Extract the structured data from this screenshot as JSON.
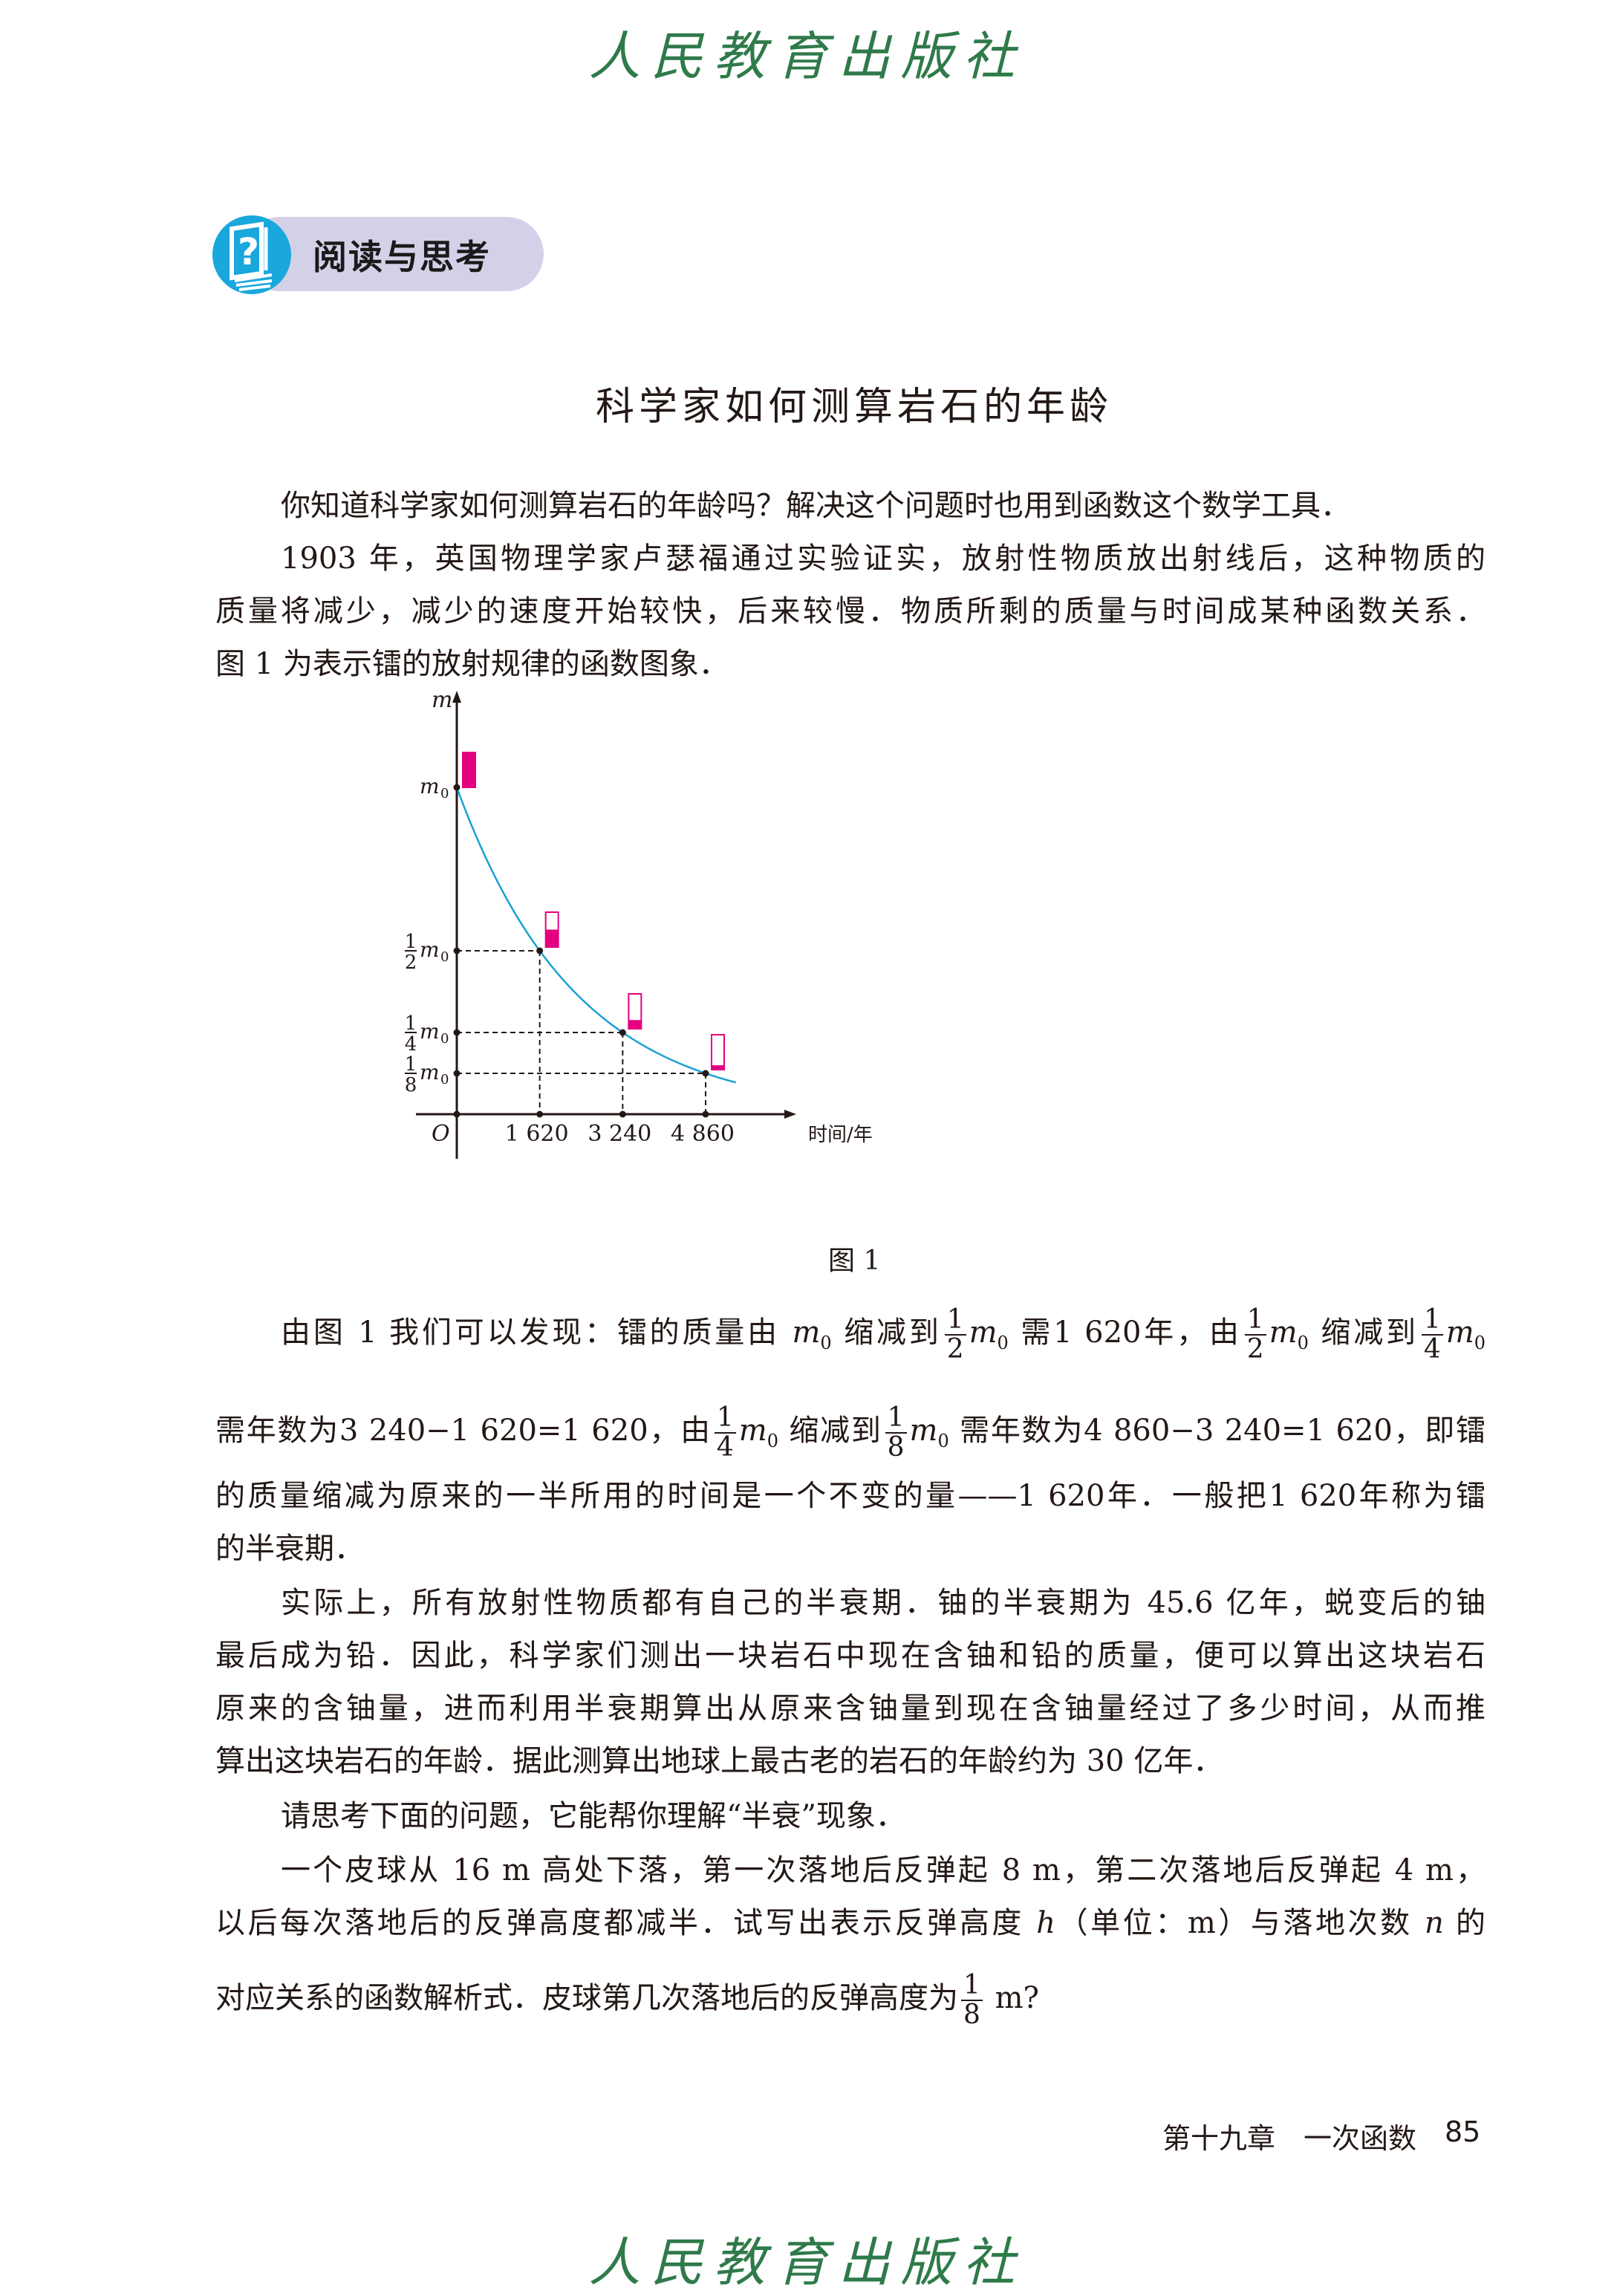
{
  "publisher_logo": "人民教育出版社",
  "section_badge": {
    "label": "阅读与思考",
    "icon": "question-book-icon",
    "pill_color": "#d3d1e8",
    "icon_color": "#1aa7dc"
  },
  "article_title": "科学家如何测算岩石的年龄",
  "body": {
    "paragraphs": [
      {
        "indent": true,
        "lines": [
          [
            {
              "t": "你知道科学家如何测算岩石的年龄吗？解决这个问题时也用到函数这个数学工具．"
            }
          ]
        ]
      },
      {
        "indent": true,
        "lines": [
          [
            {
              "t": "1903 年，英国物理学家卢瑟福通过实验证实，放射性物质放出射线后，这种物质的"
            }
          ],
          [
            {
              "t": "质量将减少，减少的速度开始较快，后来较慢．物质所剩的质量与时间成某种函数关系．"
            }
          ],
          [
            {
              "t": "图 1 为表示镭的放射规律的函数图象．"
            }
          ]
        ]
      },
      {
        "indent": true,
        "lines": [
          [
            {
              "t": "由图 1 我们可以发现：镭的质量由 "
            },
            {
              "i": "m",
              "sub": "0"
            },
            {
              "t": " 缩减到"
            },
            {
              "frac": [
                "1",
                "2"
              ]
            },
            {
              "i": "m",
              "sub": "0"
            },
            {
              "t": " 需1 620年，由"
            },
            {
              "frac": [
                "1",
                "2"
              ]
            },
            {
              "i": "m",
              "sub": "0"
            },
            {
              "t": " 缩减到"
            },
            {
              "frac": [
                "1",
                "4"
              ]
            },
            {
              "i": "m",
              "sub": "0"
            }
          ],
          [
            {
              "t": "需年数为3 240−1 620=1 620，由"
            },
            {
              "frac": [
                "1",
                "4"
              ]
            },
            {
              "i": "m",
              "sub": "0"
            },
            {
              "t": " 缩减到"
            },
            {
              "frac": [
                "1",
                "8"
              ]
            },
            {
              "i": "m",
              "sub": "0"
            },
            {
              "t": " 需年数为4 860−3 240=1 620，即镭"
            }
          ],
          [
            {
              "t": "的质量缩减为原来的一半所用的时间是一个不变的量——1 620年．一般把1 620年称为镭"
            }
          ],
          [
            {
              "t": "的半衰期．"
            }
          ]
        ]
      },
      {
        "indent": true,
        "lines": [
          [
            {
              "t": "实际上，所有放射性物质都有自己的半衰期．铀的半衰期为 45.6 亿年，蜕变后的铀"
            }
          ],
          [
            {
              "t": "最后成为铅．因此，科学家们测出一块岩石中现在含铀和铅的质量，便可以算出这块岩石"
            }
          ],
          [
            {
              "t": "原来的含铀量，进而利用半衰期算出从原来含铀量到现在含铀量经过了多少时间，从而推"
            }
          ],
          [
            {
              "t": "算出这块岩石的年龄．据此测算出地球上最古老的岩石的年龄约为 30 亿年．"
            }
          ]
        ]
      },
      {
        "indent": true,
        "lines": [
          [
            {
              "t": "请思考下面的问题，它能帮你理解“半衰”现象．"
            }
          ]
        ]
      },
      {
        "indent": true,
        "lines": [
          [
            {
              "t": "一个皮球从 16 m 高处下落，第一次落地后反弹起 8 m，第二次落地后反弹起 4 m，"
            }
          ],
          [
            {
              "t": "以后每次落地后的反弹高度都减半．试写出表示反弹高度 "
            },
            {
              "i": "h"
            },
            {
              "t": "（单位：m）与落地次数 "
            },
            {
              "i": "n"
            },
            {
              "t": " 的"
            }
          ],
          [
            {
              "t": "对应关系的函数解析式．皮球第几次落地后的反弹高度为"
            },
            {
              "frac": [
                "1",
                "8"
              ]
            },
            {
              "t": " m?"
            }
          ]
        ]
      }
    ]
  },
  "figure_caption": "图 1",
  "chart_data": {
    "type": "line",
    "function": "m = m0 · (1/2)^(t/1620)",
    "xlabel": "时间/年",
    "ylabel": "m",
    "origin_label": "O",
    "x_ticks": [
      "1 620",
      "3 240",
      "4 860"
    ],
    "x_values": [
      1620,
      3240,
      4860
    ],
    "y_ticks": [
      {
        "num": "",
        "den": "",
        "sym": "m",
        "sub": "0",
        "value": 1
      },
      {
        "num": "1",
        "den": "2",
        "sym": "m",
        "sub": "0",
        "value": 0.5
      },
      {
        "num": "1",
        "den": "4",
        "sym": "m",
        "sub": "0",
        "value": 0.25
      },
      {
        "num": "1",
        "den": "8",
        "sym": "m",
        "sub": "0",
        "value": 0.125
      }
    ],
    "points": [
      {
        "t": 0,
        "m": 1
      },
      {
        "t": 1620,
        "m": 0.5
      },
      {
        "t": 3240,
        "m": 0.25
      },
      {
        "t": 4860,
        "m": 0.125
      }
    ],
    "sample_fill_fractions": [
      1,
      0.5,
      0.25,
      0.125
    ],
    "curve_color": "#1ba1d6",
    "sample_color": "#e4007f",
    "xlim": [
      0,
      5450
    ],
    "ylim": [
      0,
      1.2
    ]
  },
  "footer": {
    "chapter": "第十九章　一次函数",
    "page_number": "85"
  }
}
